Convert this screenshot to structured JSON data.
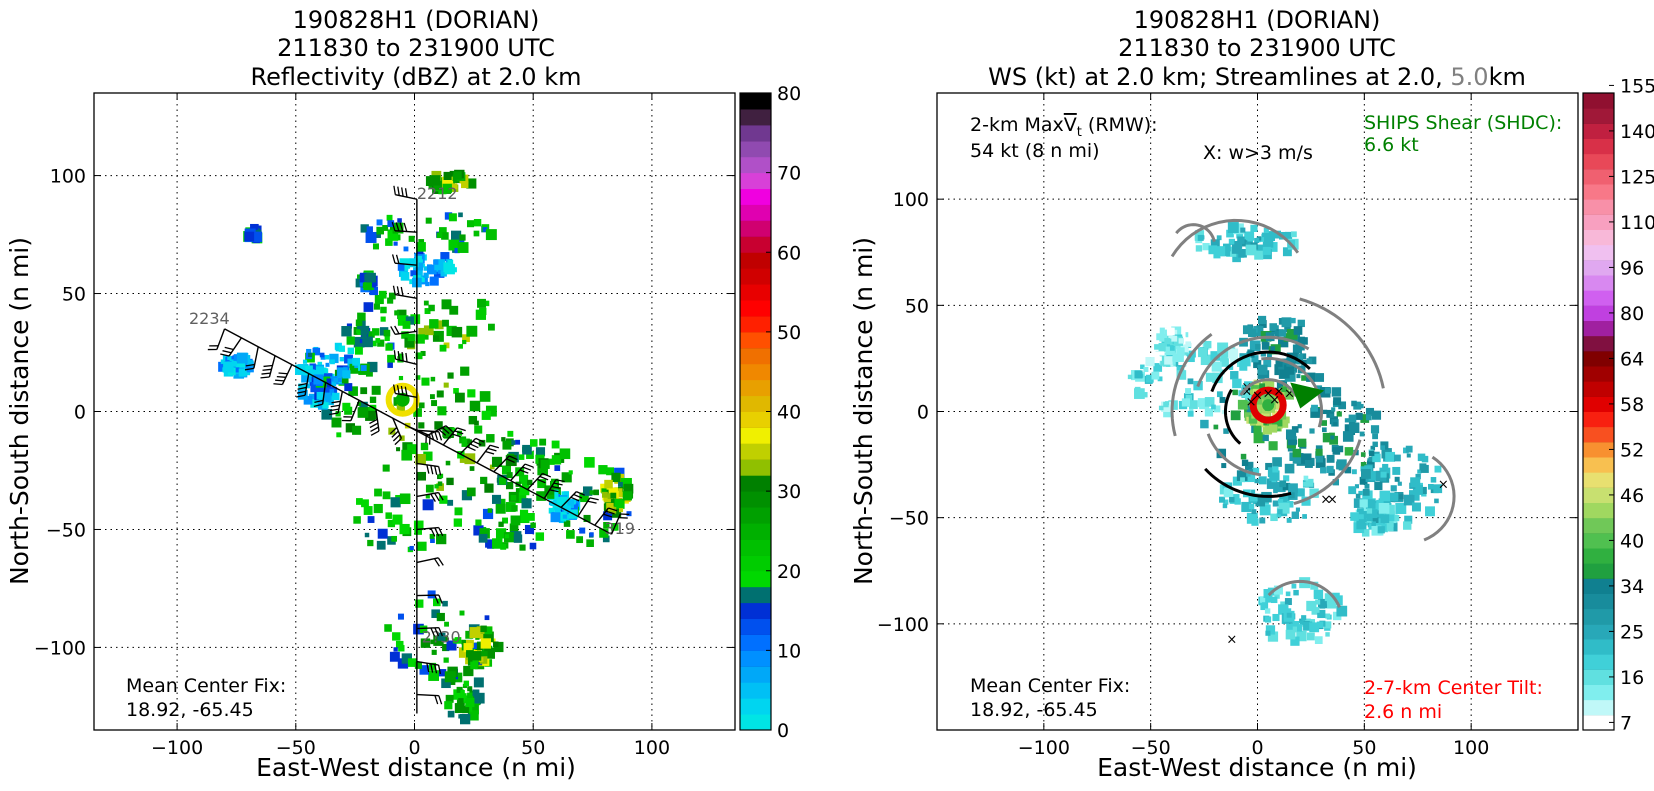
{
  "chart_data": [
    {
      "type": "heatmap",
      "title_lines": [
        "190828H1 (DORIAN)",
        "211830 to 231900 UTC",
        "Reflectivity (dBZ) at 2.0 km"
      ],
      "xlabel": "East-West distance (n mi)",
      "ylabel": "North-South distance (n mi)",
      "xlim": [
        -135,
        135
      ],
      "ylim": [
        -135,
        135
      ],
      "xticks": [
        -100,
        -50,
        0,
        50,
        100
      ],
      "yticks": [
        -100,
        -50,
        0,
        50,
        100
      ],
      "xtick_labels": [
        "−100",
        "−50",
        "0",
        "50",
        "100"
      ],
      "ytick_labels": [
        "−100",
        "−50",
        "0",
        "50",
        "100"
      ],
      "grid": true,
      "colorbar": {
        "min": 0,
        "max": 80,
        "step": 2.5,
        "ticks": [
          0,
          10,
          20,
          30,
          40,
          50,
          60,
          70,
          80
        ],
        "colors": [
          "#00e5e5",
          "#00d5f0",
          "#00c0f5",
          "#00a8f8",
          "#0090ff",
          "#0070ff",
          "#0050ee",
          "#0030d5",
          "#007070",
          "#00d800",
          "#00cc00",
          "#00c000",
          "#00b000",
          "#00a000",
          "#009000",
          "#008000",
          "#90c000",
          "#c0d000",
          "#f0f000",
          "#e8d000",
          "#e0b800",
          "#e8a000",
          "#f08800",
          "#f07000",
          "#ff5000",
          "#ff2000",
          "#ff0000",
          "#e80000",
          "#d00000",
          "#c00000",
          "#c80030",
          "#d00070",
          "#e000b0",
          "#f000e0",
          "#d840d8",
          "#b050c8",
          "#904ab0",
          "#703890",
          "#402040",
          "#000000"
        ]
      },
      "flight_legs": [
        {
          "label": "2212",
          "x": 1,
          "y": 90,
          "label_dx": 1,
          "label_dy": 90
        },
        {
          "label": "2234",
          "x": -80,
          "y": 35
        },
        {
          "label": "2319",
          "x": 83,
          "y": -52,
          "visible_label": "319"
        },
        {
          "label": "2300",
          "x": 2,
          "y": -107,
          "visible_label": "2?30"
        }
      ],
      "annotations": [
        {
          "text": "Mean Center Fix:",
          "x": -122,
          "y": -115
        },
        {
          "text": "18.92, -65.45",
          "x": -122,
          "y": -125
        }
      ]
    },
    {
      "type": "heatmap",
      "title_lines": [
        "190828H1 (DORIAN)",
        "211830 to 231900 UTC"
      ],
      "title_line3_a": "WS (kt) at 2.0 km; Streamlines at 2.0, ",
      "title_line3_b": "5.0",
      "title_line3_c": "km",
      "xlabel": "East-West distance (n mi)",
      "ylabel": "North-South distance (n mi)",
      "xlim": [
        -150,
        150
      ],
      "ylim": [
        -150,
        150
      ],
      "xticks": [
        -100,
        -50,
        0,
        50,
        100
      ],
      "yticks": [
        -100,
        -50,
        0,
        50,
        100
      ],
      "xtick_labels": [
        "−100",
        "−50",
        "0",
        "50",
        "100"
      ],
      "ytick_labels": [
        "−100",
        "−50",
        "0",
        "50",
        "100"
      ],
      "grid": true,
      "colorbar": {
        "min": 7,
        "max": 160,
        "tick_labels": [
          "7",
          "16",
          "25",
          "34",
          "40",
          "46",
          "52",
          "58",
          "64",
          "80",
          "96",
          "110",
          "125",
          "140",
          "155"
        ],
        "colors": [
          "#ffffff",
          "#c0f8f8",
          "#80eeee",
          "#60e0e0",
          "#40d0d8",
          "#30bcc8",
          "#28a8b8",
          "#209aa8",
          "#188c9c",
          "#108090",
          "#20a040",
          "#30b040",
          "#50c050",
          "#70c858",
          "#a0d860",
          "#c8e070",
          "#e8e070",
          "#f8c050",
          "#f89030",
          "#f85020",
          "#f82010",
          "#e00000",
          "#c00000",
          "#a00000",
          "#800000",
          "#801040",
          "#a020a0",
          "#c040e0",
          "#d060f0",
          "#d888f0",
          "#e0a8f0",
          "#f0c0f0",
          "#f8b8d8",
          "#f8a0c0",
          "#f890a8",
          "#f87888",
          "#f06070",
          "#e84858",
          "#d83048",
          "#c02040",
          "#a01838",
          "#901030"
        ]
      },
      "info_text": {
        "maxvt_line1_a": "2-km Max",
        "maxvt_line1_b": "V",
        "maxvt_line1_c": "t",
        "maxvt_line1_d": " (RMW):",
        "maxvt_line2": "54 kt (8 n mi)",
        "w_marker": "X: w>3 m/s",
        "ships_line1": "SHIPS Shear (SHDC):",
        "ships_line2": "6.6 kt",
        "tilt_line1": "2-7-km Center Tilt:",
        "tilt_line2": "2.6 n mi",
        "center_line1": "Mean Center Fix:",
        "center_line2": "18.92, -65.45"
      },
      "colors": {
        "ships": "#008000",
        "tilt": "#ff0000",
        "streamline_2km": "#000000",
        "streamline_5km": "#808080"
      },
      "shear_arrow": {
        "x": 20,
        "y": 8,
        "direction_deg": -20
      }
    }
  ]
}
